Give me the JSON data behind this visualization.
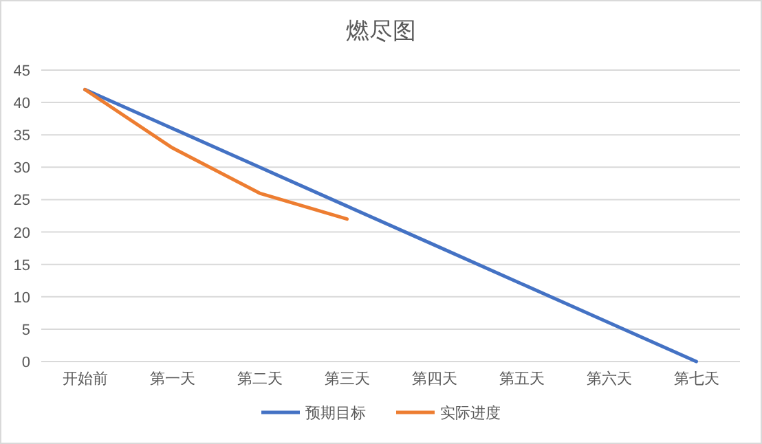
{
  "chart_data": {
    "type": "line",
    "title": "燃尽图",
    "categories": [
      "开始前",
      "第一天",
      "第二天",
      "第三天",
      "第四天",
      "第五天",
      "第六天",
      "第七天"
    ],
    "series": [
      {
        "name": "预期目标",
        "color": "#4472c4",
        "values": [
          42,
          36,
          30,
          24,
          18,
          12,
          6,
          0
        ]
      },
      {
        "name": "实际进度",
        "color": "#ed7d31",
        "values": [
          42,
          33,
          26,
          22,
          null,
          null,
          null,
          null
        ]
      }
    ],
    "ylim": [
      0,
      45
    ],
    "yticks": [
      0,
      5,
      10,
      15,
      20,
      25,
      30,
      35,
      40,
      45
    ],
    "grid": "y",
    "legend": "bottom",
    "marker": "none",
    "line_style": "solid"
  }
}
